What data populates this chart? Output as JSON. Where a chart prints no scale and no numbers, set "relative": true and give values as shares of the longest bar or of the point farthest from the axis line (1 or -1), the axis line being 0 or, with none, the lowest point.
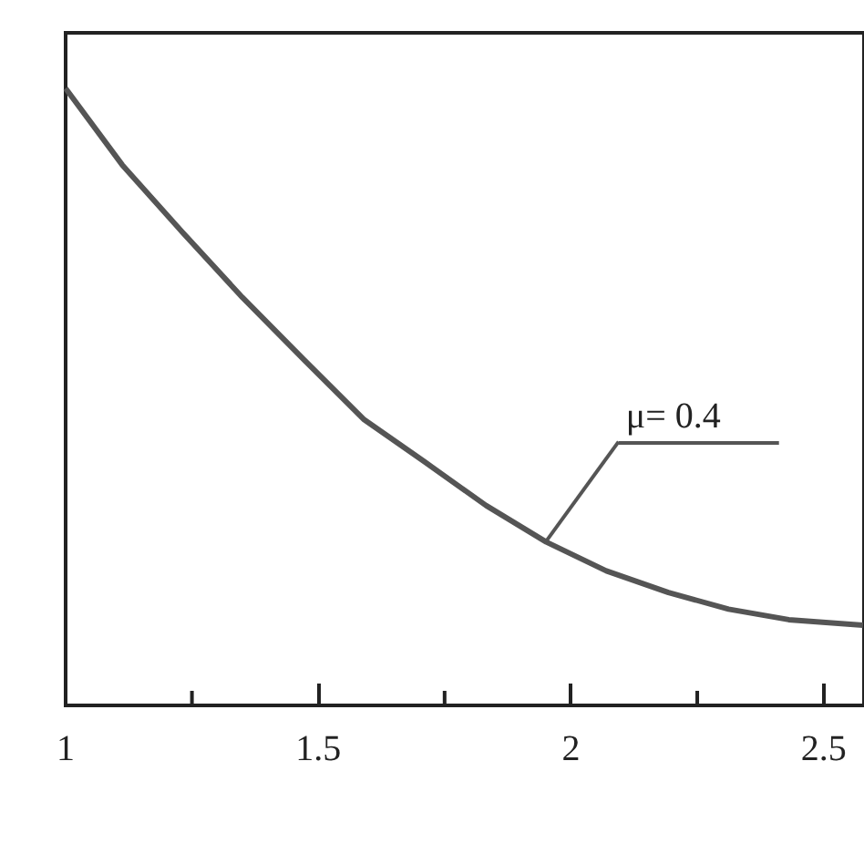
{
  "chart_data": {
    "type": "line",
    "relative": true,
    "x": [
      1,
      1.112,
      1.231,
      1.35,
      1.472,
      1.591,
      1.71,
      1.832,
      1.951,
      2.07,
      2.193,
      2.312,
      2.431,
      2.578
    ],
    "series": [
      {
        "color": "#555555",
        "values": [
          1,
          0.876,
          0.767,
          0.661,
          0.56,
          0.463,
          0.395,
          0.324,
          0.265,
          0.218,
          0.183,
          0.156,
          0.139,
          0.13
        ]
      }
    ],
    "xlim": [
      1,
      2.58
    ],
    "xticks": [
      1,
      1.5,
      2,
      2.5
    ],
    "annotations": [
      {
        "text": "μ= 0.4",
        "x": 1.95,
        "y": 0.265
      }
    ],
    "grid": false,
    "marker": "none",
    "line_style": "solid"
  }
}
